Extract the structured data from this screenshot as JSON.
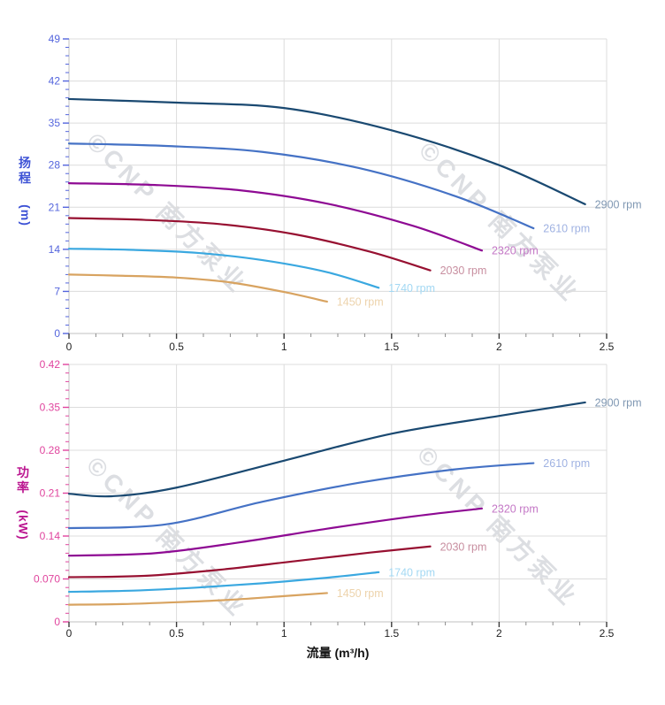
{
  "watermark": {
    "text": "©CNP 南方泵业"
  },
  "x_axis_title": "流量 (m³/h)",
  "chart_data": [
    {
      "id": "head",
      "type": "line",
      "title": "",
      "xlabel": "流量 (m³/h)",
      "ylabel": "扬程 (m)",
      "ylabel_lines": [
        "扬",
        "程"
      ],
      "ylabel_unit": "(m)",
      "xlim": [
        0,
        2.5
      ],
      "ylim": [
        0,
        49
      ],
      "x_tick_values": [
        0,
        0.5,
        1,
        1.5,
        2,
        2.5
      ],
      "x_tick_labels": [
        "0",
        "0.5",
        "1",
        "1.5",
        "2",
        "2.5"
      ],
      "x_minor_step": 0.125,
      "y_tick_values": [
        0,
        7,
        14,
        21,
        28,
        35,
        42,
        49
      ],
      "y_tick_labels": [
        "0",
        "7",
        "14",
        "21",
        "28",
        "35",
        "42",
        "49"
      ],
      "y_minor_step": 1.4,
      "grid": true,
      "legend_position": "curve-end",
      "axis_title_color": "#3d52d5",
      "tick_label_color": "#5465dd",
      "series": [
        {
          "name": "2900 rpm",
          "color": "#1a4971",
          "label_color": "#8098b3",
          "x": [
            0,
            0.5,
            1.0,
            1.5,
            2.0,
            2.4
          ],
          "y": [
            39.0,
            38.4,
            37.5,
            33.8,
            28.0,
            21.5
          ]
        },
        {
          "name": "2610 rpm",
          "color": "#4572c5",
          "label_color": "#9fb2e2",
          "x": [
            0,
            0.45,
            0.9,
            1.35,
            1.8,
            2.16
          ],
          "y": [
            31.6,
            31.2,
            30.2,
            27.5,
            22.8,
            17.5
          ]
        },
        {
          "name": "2320 rpm",
          "color": "#8e0a93",
          "label_color": "#c478c6",
          "x": [
            0,
            0.4,
            0.8,
            1.2,
            1.6,
            1.92
          ],
          "y": [
            25.0,
            24.7,
            23.8,
            21.6,
            17.9,
            13.8
          ]
        },
        {
          "name": "2030 rpm",
          "color": "#971031",
          "label_color": "#c88fa0",
          "x": [
            0,
            0.35,
            0.7,
            1.05,
            1.4,
            1.68
          ],
          "y": [
            19.2,
            18.9,
            18.2,
            16.5,
            13.6,
            10.5
          ]
        },
        {
          "name": "1740 rpm",
          "color": "#3aa8e0",
          "label_color": "#a3d8f3",
          "x": [
            0,
            0.3,
            0.6,
            0.9,
            1.2,
            1.44
          ],
          "y": [
            14.1,
            13.9,
            13.4,
            12.2,
            10.2,
            7.6
          ]
        },
        {
          "name": "1450 rpm",
          "color": "#d8a360",
          "label_color": "#edd3ac",
          "x": [
            0,
            0.25,
            0.5,
            0.75,
            1.0,
            1.2
          ],
          "y": [
            9.8,
            9.6,
            9.3,
            8.5,
            6.9,
            5.3
          ]
        }
      ]
    },
    {
      "id": "power",
      "type": "line",
      "title": "",
      "xlabel": "流量 (m³/h)",
      "ylabel": "功率 (kW)",
      "ylabel_lines": [
        "功",
        "率"
      ],
      "ylabel_unit": "(kW)",
      "xlim": [
        0,
        2.5
      ],
      "ylim": [
        0,
        0.42
      ],
      "x_tick_values": [
        0,
        0.5,
        1,
        1.5,
        2,
        2.5
      ],
      "x_tick_labels": [
        "0",
        "0.5",
        "1",
        "1.5",
        "2",
        "2.5"
      ],
      "x_minor_step": 0.125,
      "y_tick_values": [
        0,
        0.07,
        0.14,
        0.21,
        0.28,
        0.35,
        0.42
      ],
      "y_tick_labels": [
        "0",
        "0.070",
        "0.14",
        "0.21",
        "0.28",
        "0.35",
        "0.42"
      ],
      "y_minor_step": 0.014,
      "grid": true,
      "legend_position": "curve-end",
      "axis_title_color": "#bb1690",
      "tick_label_color": "#e0459e",
      "series": [
        {
          "name": "2900 rpm",
          "color": "#1a4971",
          "label_color": "#8098b3",
          "x": [
            0,
            0.2,
            0.5,
            1.0,
            1.5,
            2.0,
            2.4
          ],
          "y": [
            0.209,
            0.205,
            0.219,
            0.263,
            0.307,
            0.336,
            0.358
          ]
        },
        {
          "name": "2610 rpm",
          "color": "#4572c5",
          "label_color": "#9fb2e2",
          "x": [
            0,
            0.45,
            0.9,
            1.35,
            1.8,
            2.16
          ],
          "y": [
            0.153,
            0.159,
            0.196,
            0.227,
            0.249,
            0.259
          ]
        },
        {
          "name": "2320 rpm",
          "color": "#8e0a93",
          "label_color": "#c478c6",
          "x": [
            0,
            0.4,
            0.8,
            1.2,
            1.6,
            1.92
          ],
          "y": [
            0.108,
            0.112,
            0.13,
            0.152,
            0.172,
            0.185
          ]
        },
        {
          "name": "2030 rpm",
          "color": "#971031",
          "label_color": "#c88fa0",
          "x": [
            0,
            0.35,
            0.7,
            1.05,
            1.4,
            1.68
          ],
          "y": [
            0.073,
            0.075,
            0.085,
            0.099,
            0.113,
            0.123
          ]
        },
        {
          "name": "1740 rpm",
          "color": "#3aa8e0",
          "label_color": "#a3d8f3",
          "x": [
            0,
            0.3,
            0.6,
            0.9,
            1.2,
            1.44
          ],
          "y": [
            0.049,
            0.051,
            0.056,
            0.063,
            0.072,
            0.081
          ]
        },
        {
          "name": "1450 rpm",
          "color": "#d8a360",
          "label_color": "#edd3ac",
          "x": [
            0,
            0.25,
            0.5,
            0.75,
            1.0,
            1.2
          ],
          "y": [
            0.028,
            0.029,
            0.032,
            0.036,
            0.042,
            0.047
          ]
        }
      ]
    }
  ]
}
